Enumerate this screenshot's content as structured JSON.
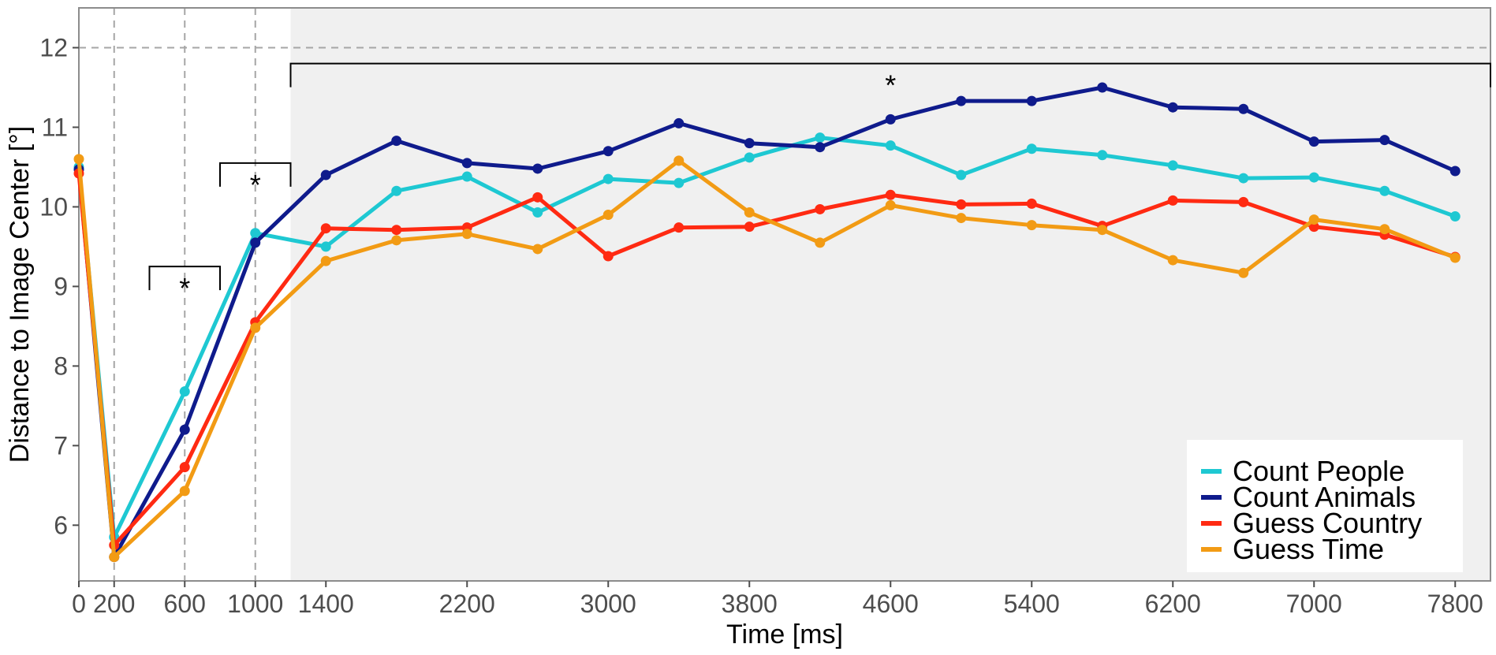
{
  "chart_data": {
    "type": "line",
    "title": "",
    "xlabel": "Time [ms]",
    "ylabel": "Distance to Image Center [°]",
    "xlim": [
      0,
      8000
    ],
    "ylim": [
      5.3,
      12.5
    ],
    "xticks": [
      0,
      200,
      600,
      1000,
      1400,
      2200,
      3000,
      3800,
      4600,
      5400,
      6200,
      7000,
      7800
    ],
    "yticks": [
      6,
      7,
      8,
      9,
      10,
      11,
      12
    ],
    "reference_line_y": 12,
    "reference_lines_x": [
      200,
      600,
      1000
    ],
    "shaded_region_x": [
      1200,
      8000
    ],
    "grid": false,
    "legend_position": "bottom-right",
    "x": [
      0,
      200,
      600,
      1000,
      1400,
      1800,
      2200,
      2600,
      3000,
      3400,
      3800,
      4200,
      4600,
      5000,
      5400,
      5800,
      6200,
      6600,
      7000,
      7400,
      7800
    ],
    "series": [
      {
        "name": "Count People",
        "color": "#1ec8d2",
        "values": [
          10.5,
          5.85,
          7.68,
          9.67,
          9.5,
          10.2,
          10.38,
          9.93,
          10.35,
          10.3,
          10.62,
          10.87,
          10.77,
          10.4,
          10.73,
          10.65,
          10.52,
          10.36,
          10.37,
          10.2,
          9.88
        ]
      },
      {
        "name": "Count Animals",
        "color": "#0f1b8c",
        "values": [
          10.47,
          5.6,
          7.2,
          9.55,
          10.4,
          10.83,
          10.55,
          10.48,
          10.7,
          11.05,
          10.8,
          10.75,
          11.1,
          11.33,
          11.33,
          11.5,
          11.25,
          11.23,
          10.82,
          10.84,
          10.45
        ]
      },
      {
        "name": "Guess Country",
        "color": "#ff2a12",
        "values": [
          10.42,
          5.75,
          6.73,
          8.55,
          9.73,
          9.71,
          9.74,
          10.12,
          9.38,
          9.74,
          9.75,
          9.97,
          10.15,
          10.03,
          10.04,
          9.76,
          10.08,
          10.06,
          9.75,
          9.65,
          9.37
        ]
      },
      {
        "name": "Guess Time",
        "color": "#f29b14",
        "values": [
          10.6,
          5.6,
          6.43,
          8.48,
          9.32,
          9.58,
          9.66,
          9.47,
          9.9,
          10.58,
          9.93,
          9.55,
          10.02,
          9.86,
          9.77,
          9.71,
          9.33,
          9.17,
          9.84,
          9.72,
          9.36
        ]
      }
    ],
    "significance": [
      {
        "x_from": 400,
        "x_to": 800,
        "y": 9.25,
        "label": "*"
      },
      {
        "x_from": 800,
        "x_to": 1200,
        "y": 10.55,
        "label": "*"
      },
      {
        "x_from": 1200,
        "x_to": 8000,
        "y": 11.8,
        "label": "*"
      }
    ]
  }
}
